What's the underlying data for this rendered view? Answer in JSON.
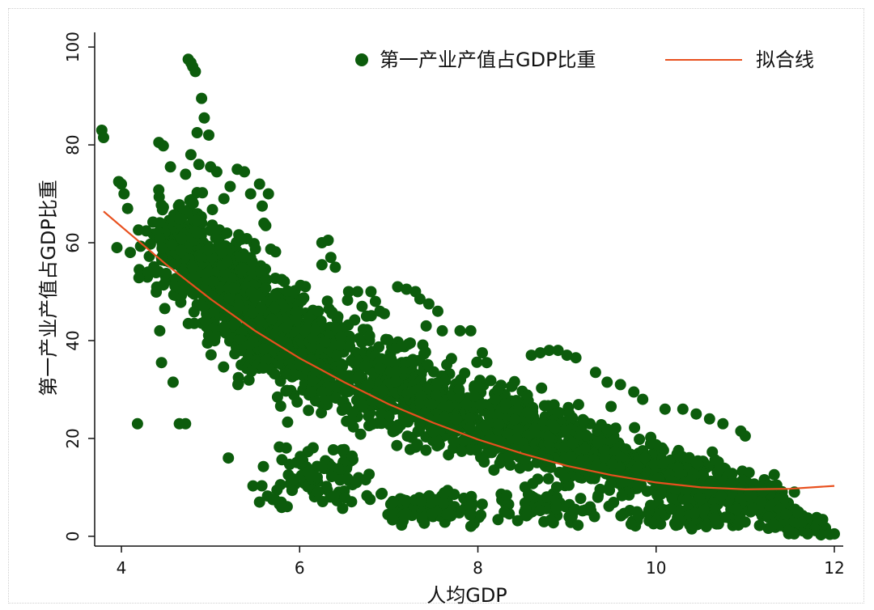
{
  "chart_data": {
    "type": "scatter",
    "title": "",
    "xlabel": "人均GDP",
    "ylabel": "第一产业产值占GDP比重",
    "xlim": [
      3.7,
      12.1
    ],
    "ylim": [
      -2,
      103
    ],
    "xticks": [
      "4",
      "6",
      "8",
      "10",
      "12"
    ],
    "yticks": [
      "0",
      "20",
      "40",
      "60",
      "80",
      "100"
    ],
    "grid": false,
    "legend_position": "top-right",
    "colors": {
      "scatter": "#0c5c0c",
      "fit": "#e8501e"
    },
    "series": [
      {
        "name": "第一产业产值占GDP比重",
        "kind": "scatter",
        "clusters": [
          {
            "center": [
              4.7,
              58
            ],
            "spread": [
              0.35,
              9
            ],
            "count": 220
          },
          {
            "center": [
              5.2,
              50
            ],
            "spread": [
              0.35,
              10
            ],
            "count": 260
          },
          {
            "center": [
              5.7,
              42
            ],
            "spread": [
              0.4,
              10
            ],
            "count": 260
          },
          {
            "center": [
              6.3,
              36
            ],
            "spread": [
              0.45,
              9
            ],
            "count": 230
          },
          {
            "center": [
              7.0,
              31
            ],
            "spread": [
              0.5,
              9
            ],
            "count": 220
          },
          {
            "center": [
              7.7,
              26
            ],
            "spread": [
              0.5,
              8
            ],
            "count": 200
          },
          {
            "center": [
              8.4,
              22
            ],
            "spread": [
              0.45,
              7
            ],
            "count": 220
          },
          {
            "center": [
              9.1,
              18
            ],
            "spread": [
              0.45,
              6
            ],
            "count": 200
          },
          {
            "center": [
              9.8,
              14
            ],
            "spread": [
              0.45,
              5
            ],
            "count": 190
          },
          {
            "center": [
              10.5,
              11
            ],
            "spread": [
              0.4,
              5
            ],
            "count": 180
          },
          {
            "center": [
              11.1,
              7
            ],
            "spread": [
              0.35,
              4
            ],
            "count": 150
          },
          {
            "center": [
              11.6,
              3
            ],
            "spread": [
              0.25,
              2
            ],
            "count": 70
          },
          {
            "center": [
              6.2,
              12
            ],
            "spread": [
              0.5,
              6
            ],
            "count": 90
          },
          {
            "center": [
              7.5,
              6
            ],
            "spread": [
              0.6,
              3
            ],
            "count": 90
          },
          {
            "center": [
              8.8,
              6
            ],
            "spread": [
              0.6,
              3
            ],
            "count": 70
          },
          {
            "center": [
              10.3,
              4
            ],
            "spread": [
              0.6,
              2
            ],
            "count": 70
          }
        ],
        "points": [
          [
            3.78,
            83
          ],
          [
            3.8,
            81.5
          ],
          [
            3.97,
            72.5
          ],
          [
            4.0,
            72
          ],
          [
            4.03,
            70
          ],
          [
            4.07,
            67
          ],
          [
            3.95,
            59
          ],
          [
            4.1,
            58
          ],
          [
            4.18,
            23
          ],
          [
            4.2,
            54.5
          ],
          [
            4.3,
            54
          ],
          [
            4.43,
            42
          ],
          [
            4.45,
            35.5
          ],
          [
            4.58,
            31.5
          ],
          [
            4.65,
            23
          ],
          [
            4.72,
            23
          ],
          [
            4.42,
            80.5
          ],
          [
            4.47,
            79.8
          ],
          [
            4.55,
            75.5
          ],
          [
            4.75,
            97.5
          ],
          [
            4.78,
            96.8
          ],
          [
            4.8,
            96
          ],
          [
            4.83,
            95
          ],
          [
            4.72,
            74
          ],
          [
            4.78,
            78
          ],
          [
            4.85,
            82.5
          ],
          [
            4.87,
            76
          ],
          [
            4.9,
            89.5
          ],
          [
            4.93,
            85.5
          ],
          [
            4.98,
            82
          ],
          [
            5.0,
            75.5
          ],
          [
            5.07,
            74.5
          ],
          [
            5.15,
            69
          ],
          [
            5.22,
            71.5
          ],
          [
            5.3,
            75
          ],
          [
            5.38,
            74.5
          ],
          [
            5.45,
            70
          ],
          [
            5.55,
            72
          ],
          [
            5.58,
            67.5
          ],
          [
            5.6,
            64
          ],
          [
            5.62,
            63.5
          ],
          [
            5.65,
            70
          ],
          [
            5.2,
            16
          ],
          [
            5.55,
            7
          ],
          [
            5.7,
            7.5
          ],
          [
            6.25,
            60
          ],
          [
            6.32,
            60.5
          ],
          [
            6.35,
            57
          ],
          [
            6.4,
            55
          ],
          [
            6.25,
            55.5
          ],
          [
            6.55,
            50
          ],
          [
            6.65,
            50
          ],
          [
            6.8,
            50
          ],
          [
            6.85,
            48
          ],
          [
            6.7,
            47
          ],
          [
            6.9,
            46
          ],
          [
            6.75,
            45
          ],
          [
            6.95,
            45.5
          ],
          [
            7.1,
            51
          ],
          [
            7.2,
            50.5
          ],
          [
            7.3,
            50
          ],
          [
            7.35,
            48.5
          ],
          [
            7.45,
            47.5
          ],
          [
            7.55,
            46
          ],
          [
            7.42,
            43
          ],
          [
            7.6,
            42
          ],
          [
            7.8,
            42
          ],
          [
            7.92,
            42
          ],
          [
            8.05,
            37.5
          ],
          [
            8.1,
            35.5
          ],
          [
            8.6,
            37
          ],
          [
            8.7,
            37.5
          ],
          [
            8.8,
            38
          ],
          [
            8.9,
            38
          ],
          [
            9.0,
            37
          ],
          [
            9.1,
            36.5
          ],
          [
            9.32,
            33.5
          ],
          [
            9.45,
            31.5
          ],
          [
            9.6,
            31
          ],
          [
            9.75,
            29.5
          ],
          [
            9.85,
            28
          ],
          [
            10.1,
            26
          ],
          [
            10.3,
            26
          ],
          [
            10.45,
            25
          ],
          [
            10.6,
            24
          ],
          [
            10.75,
            23
          ],
          [
            10.95,
            21.5
          ],
          [
            11.0,
            20.5
          ],
          [
            9.72,
            2.5
          ],
          [
            10.05,
            2.5
          ],
          [
            10.4,
            1.5
          ],
          [
            11.55,
            0.5
          ],
          [
            11.7,
            0.5
          ],
          [
            11.85,
            0.3
          ],
          [
            12.0,
            0.5
          ],
          [
            11.95,
            0.4
          ]
        ]
      },
      {
        "name": "拟合线",
        "kind": "line",
        "x": [
          3.8,
          4.0,
          4.5,
          5.0,
          5.5,
          6.0,
          6.5,
          7.0,
          7.5,
          8.0,
          8.5,
          9.0,
          9.5,
          10.0,
          10.5,
          11.0,
          11.5,
          12.0
        ],
        "y": [
          66.4,
          63.3,
          55.6,
          48.5,
          42.0,
          36.4,
          31.5,
          27.0,
          23.2,
          19.8,
          16.9,
          14.4,
          12.5,
          11.0,
          10.0,
          9.6,
          9.7,
          10.3
        ]
      }
    ]
  }
}
